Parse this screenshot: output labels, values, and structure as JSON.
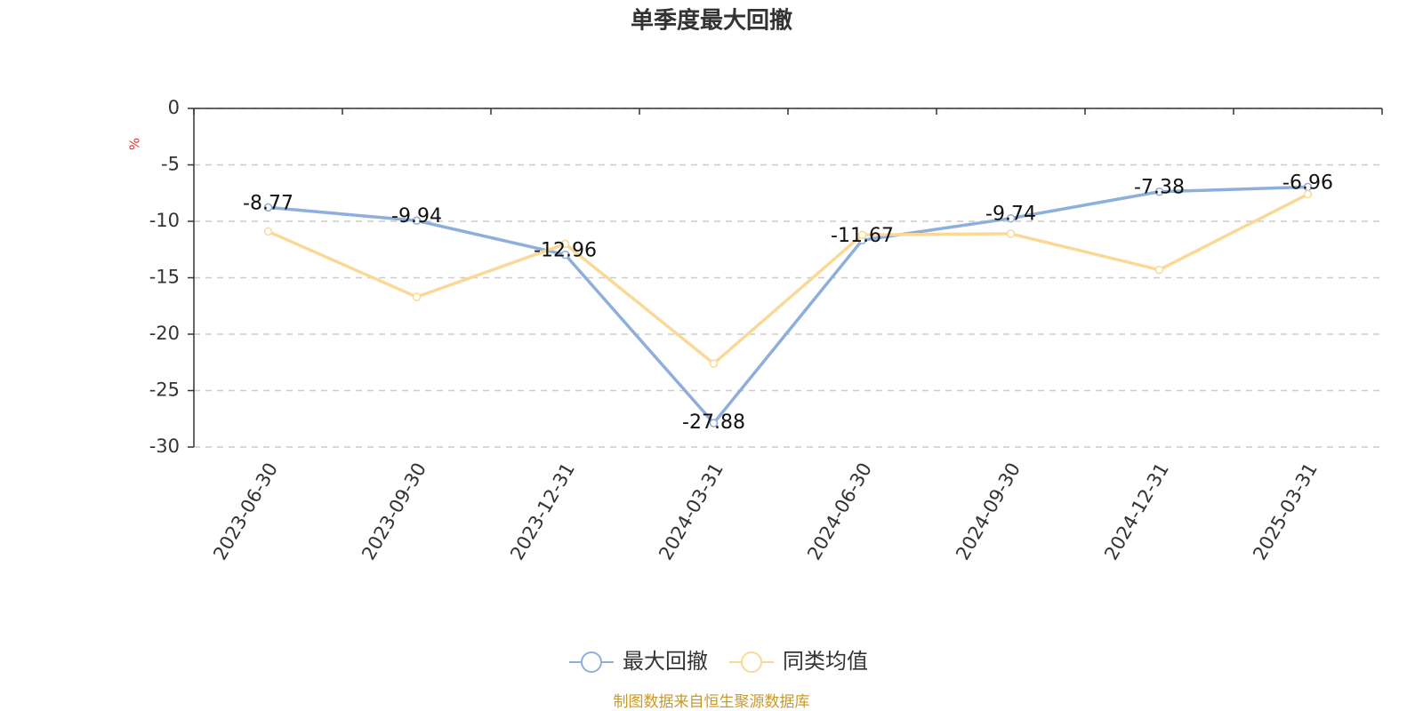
{
  "chart_data": {
    "type": "line",
    "title": "单季度最大回撤",
    "y_label": "%",
    "categories": [
      "2023-06-30",
      "2023-09-30",
      "2023-12-31",
      "2024-03-31",
      "2024-06-30",
      "2024-09-30",
      "2024-12-31",
      "2025-03-31"
    ],
    "series": [
      {
        "name": "最大回撤",
        "color": "#8eaedb",
        "values": [
          -8.77,
          -9.94,
          -12.96,
          -27.88,
          -11.67,
          -9.74,
          -7.38,
          -6.96
        ]
      },
      {
        "name": "同类均值",
        "color": "#fad996",
        "values": [
          -10.9,
          -16.7,
          -12.0,
          -22.6,
          -11.2,
          -11.1,
          -14.3,
          -7.6
        ]
      }
    ],
    "ylim": [
      -30,
      0
    ],
    "yticks": [
      0,
      -5,
      -10,
      -15,
      -20,
      -25,
      -30
    ],
    "grid": true,
    "source": "制图数据来自恒生聚源数据库"
  }
}
